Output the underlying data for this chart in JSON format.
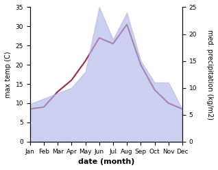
{
  "months": [
    "Jan",
    "Feb",
    "Mar",
    "Apr",
    "May",
    "Jun",
    "Jul",
    "Aug",
    "Sep",
    "Oct",
    "Nov",
    "Dec"
  ],
  "temperature": [
    8.5,
    9.0,
    13.0,
    16.0,
    21.0,
    27.0,
    25.5,
    30.5,
    20.0,
    13.5,
    10.0,
    8.5
  ],
  "precipitation": [
    7.0,
    8.0,
    9.0,
    10.0,
    13.0,
    25.0,
    19.0,
    24.0,
    15.0,
    11.0,
    11.0,
    6.0
  ],
  "temp_color": "#9e3050",
  "precip_color": "#b0b8e8",
  "precip_alpha": 0.65,
  "xlabel": "date (month)",
  "ylabel_left": "max temp (C)",
  "ylabel_right": "med. precipitation (kg/m2)",
  "ylim_left": [
    0,
    35
  ],
  "ylim_right": [
    0,
    25
  ],
  "yticks_left": [
    0,
    5,
    10,
    15,
    20,
    25,
    30,
    35
  ],
  "yticks_right": [
    0,
    5,
    10,
    15,
    20,
    25
  ],
  "background_color": "#ffffff",
  "temp_linewidth": 1.6,
  "label_fontsize": 7.0,
  "tick_fontsize": 6.5,
  "xlabel_fontsize": 8.0
}
